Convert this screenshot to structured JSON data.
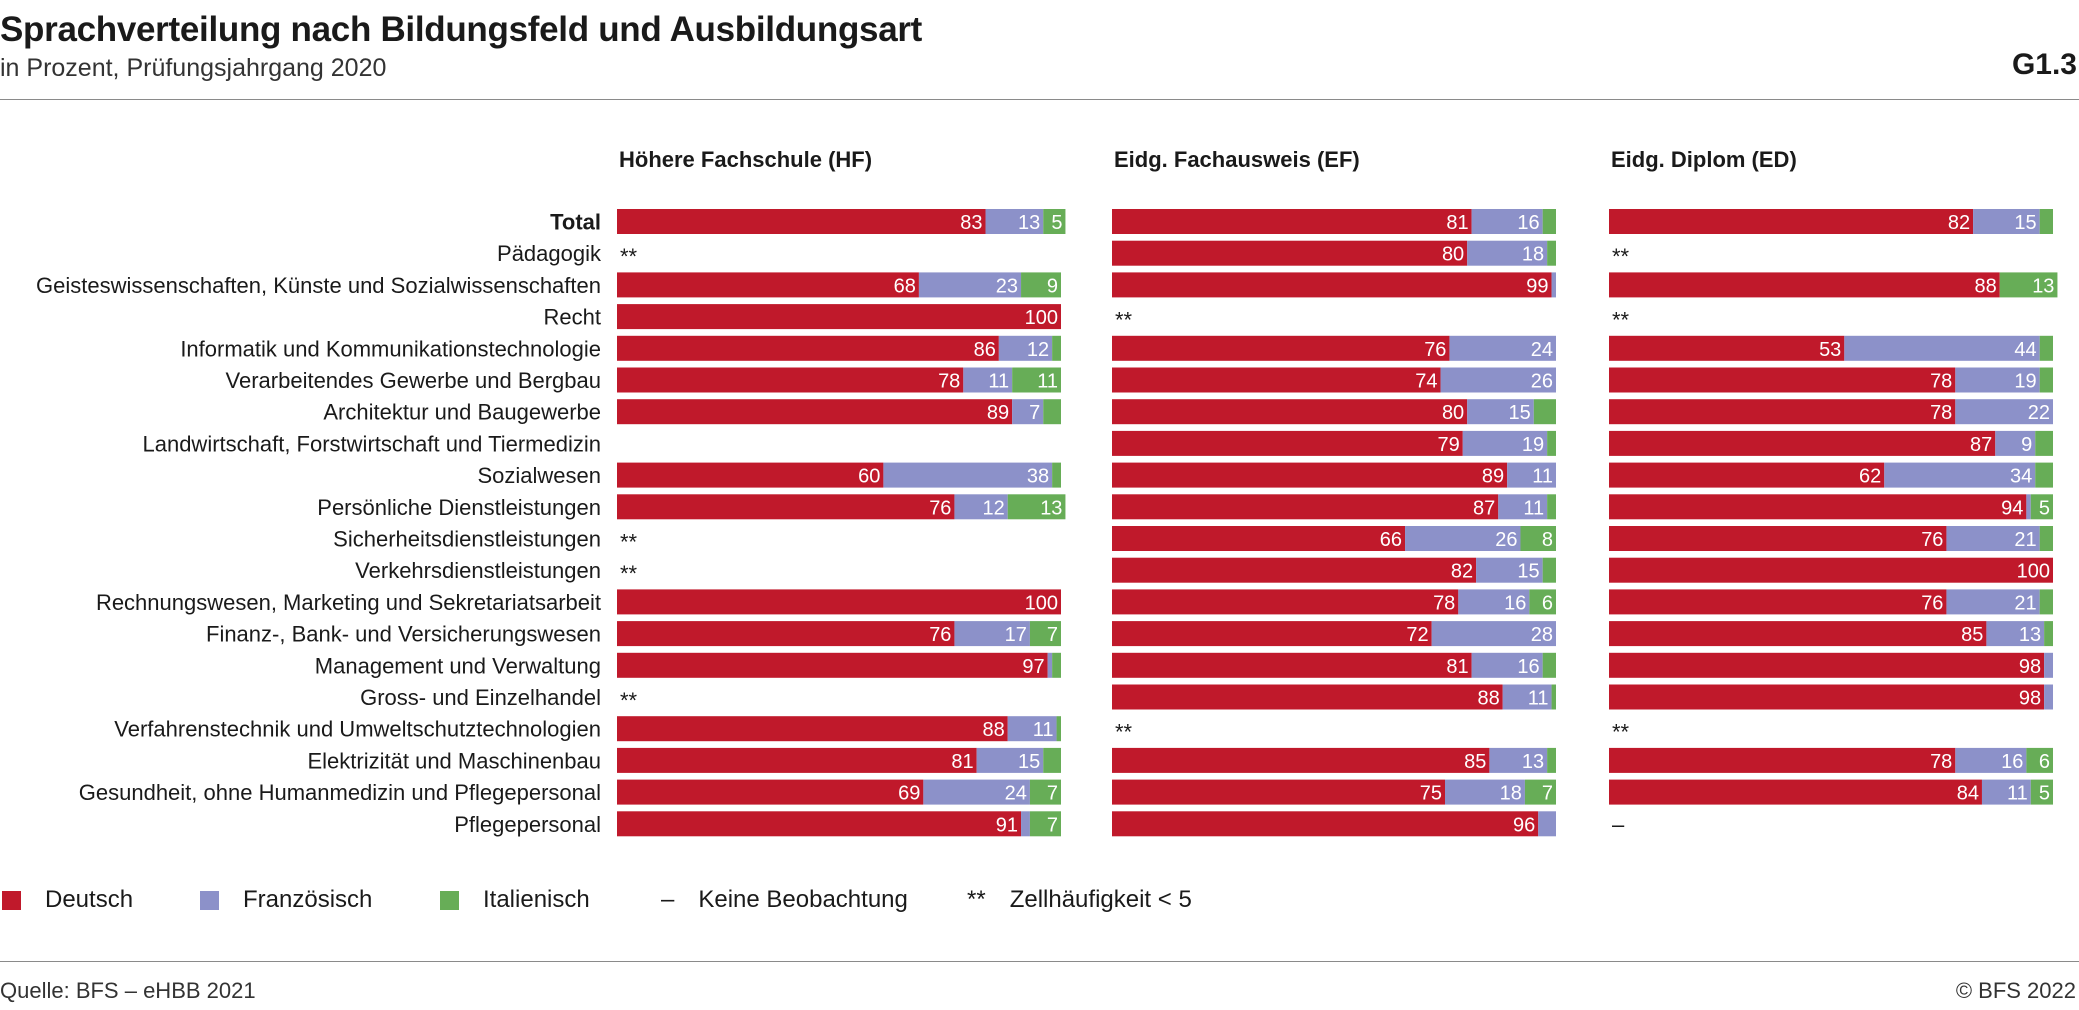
{
  "header": {
    "title": "Sprachverteilung nach Bildungsfeld und Ausbildungsart",
    "subtitle": "in Prozent, Prüfungsjahrgang 2020",
    "figure_number": "G1.3"
  },
  "legend": {
    "deutsch": "Deutsch",
    "franzoesisch": "Französisch",
    "italienisch": "Italienisch",
    "keine_symbol": "–",
    "keine_label": "Keine Beobachtung",
    "zell_symbol": "**",
    "zell_label": "Zellhäufigkeit < 5"
  },
  "footer": {
    "source": "Quelle: BFS – eHBB 2021",
    "copyright": "© BFS 2022"
  },
  "colors": {
    "Deutsch": "#c0192b",
    "Französisch": "#8c91c9",
    "Italienisch": "#67ad57",
    "text": "#1a1a1a"
  },
  "chart_data": {
    "type": "bar",
    "stacked": true,
    "orientation": "horizontal",
    "categories": [
      "Total",
      "Pädagogik",
      "Geisteswissenschaften, Künste und Sozialwissenschaften",
      "Recht",
      "Informatik und Kommunikationstechnologie",
      "Verarbeitendes Gewerbe und Bergbau",
      "Architektur und Baugewerbe",
      "Landwirtschaft, Forstwirtschaft und Tiermedizin",
      "Sozialwesen",
      "Persönliche Dienstleistungen",
      "Sicherheitsdienstleistungen",
      "Verkehrsdienstleistungen",
      "Rechnungswesen, Marketing und Sekretariatsarbeit",
      "Finanz-, Bank- und Versicherungswesen",
      "Management und Verwaltung",
      "Gross- und Einzelhandel",
      "Verfahrenstechnik und Umweltschutztechnologien",
      "Elektrizität und Maschinenbau",
      "Gesundheit, ohne Humanmedizin und Pflegepersonal",
      "Pflegepersonal"
    ],
    "series_names": [
      "Deutsch",
      "Französisch",
      "Italienisch"
    ],
    "xlim": [
      0,
      100
    ],
    "panels": [
      {
        "title": "Höhere Fachschule (HF)",
        "rows": [
          {
            "values": [
              83,
              13,
              5
            ],
            "labels": [
              "83",
              "13",
              "5"
            ]
          },
          {
            "note": "**"
          },
          {
            "values": [
              68,
              23,
              9
            ],
            "labels": [
              "68",
              "23",
              "9"
            ]
          },
          {
            "values": [
              100,
              0,
              0
            ],
            "labels": [
              "100",
              "",
              ""
            ]
          },
          {
            "values": [
              86,
              12,
              2
            ],
            "labels": [
              "86",
              "12",
              ""
            ]
          },
          {
            "values": [
              78,
              11,
              11
            ],
            "labels": [
              "78",
              "11",
              "11"
            ]
          },
          {
            "values": [
              89,
              7,
              4
            ],
            "labels": [
              "89",
              "7",
              ""
            ]
          },
          {},
          {
            "values": [
              60,
              38,
              2
            ],
            "labels": [
              "60",
              "38",
              ""
            ]
          },
          {
            "values": [
              76,
              12,
              13
            ],
            "labels": [
              "76",
              "12",
              "13"
            ]
          },
          {
            "note": "**"
          },
          {
            "note": "**"
          },
          {
            "values": [
              100,
              0,
              0
            ],
            "labels": [
              "100",
              "",
              ""
            ]
          },
          {
            "values": [
              76,
              17,
              7
            ],
            "labels": [
              "76",
              "17",
              "7"
            ]
          },
          {
            "values": [
              97,
              1,
              2
            ],
            "labels": [
              "97",
              "",
              ""
            ]
          },
          {
            "note": "**"
          },
          {
            "values": [
              88,
              11,
              1
            ],
            "labels": [
              "88",
              "11",
              ""
            ]
          },
          {
            "values": [
              81,
              15,
              4
            ],
            "labels": [
              "81",
              "15",
              ""
            ]
          },
          {
            "values": [
              69,
              24,
              7
            ],
            "labels": [
              "69",
              "24",
              "7"
            ]
          },
          {
            "values": [
              91,
              2,
              7
            ],
            "labels": [
              "91",
              "",
              "7"
            ]
          }
        ]
      },
      {
        "title": "Eidg. Fachausweis (EF)",
        "rows": [
          {
            "values": [
              81,
              16,
              3
            ],
            "labels": [
              "81",
              "16",
              ""
            ]
          },
          {
            "values": [
              80,
              18,
              2
            ],
            "labels": [
              "80",
              "18",
              ""
            ]
          },
          {
            "values": [
              99,
              1,
              0
            ],
            "labels": [
              "99",
              "",
              ""
            ]
          },
          {
            "note": "**"
          },
          {
            "values": [
              76,
              24,
              0
            ],
            "labels": [
              "76",
              "24",
              ""
            ]
          },
          {
            "values": [
              74,
              26,
              0
            ],
            "labels": [
              "74",
              "26",
              ""
            ]
          },
          {
            "values": [
              80,
              15,
              5
            ],
            "labels": [
              "80",
              "15",
              ""
            ]
          },
          {
            "values": [
              79,
              19,
              2
            ],
            "labels": [
              "79",
              "19",
              ""
            ]
          },
          {
            "values": [
              89,
              11,
              0
            ],
            "labels": [
              "89",
              "11",
              ""
            ]
          },
          {
            "values": [
              87,
              11,
              2
            ],
            "labels": [
              "87",
              "11",
              ""
            ]
          },
          {
            "values": [
              66,
              26,
              8
            ],
            "labels": [
              "66",
              "26",
              "8"
            ]
          },
          {
            "values": [
              82,
              15,
              3
            ],
            "labels": [
              "82",
              "15",
              ""
            ]
          },
          {
            "values": [
              78,
              16,
              6
            ],
            "labels": [
              "78",
              "16",
              "6"
            ]
          },
          {
            "values": [
              72,
              28,
              0
            ],
            "labels": [
              "72",
              "28",
              ""
            ]
          },
          {
            "values": [
              81,
              16,
              3
            ],
            "labels": [
              "81",
              "16",
              ""
            ]
          },
          {
            "values": [
              88,
              11,
              1
            ],
            "labels": [
              "88",
              "11",
              ""
            ]
          },
          {
            "note": "**"
          },
          {
            "values": [
              85,
              13,
              2
            ],
            "labels": [
              "85",
              "13",
              ""
            ]
          },
          {
            "values": [
              75,
              18,
              7
            ],
            "labels": [
              "75",
              "18",
              "7"
            ]
          },
          {
            "values": [
              96,
              4,
              0
            ],
            "labels": [
              "96",
              "",
              ""
            ]
          }
        ]
      },
      {
        "title": "Eidg. Diplom (ED)",
        "rows": [
          {
            "values": [
              82,
              15,
              3
            ],
            "labels": [
              "82",
              "15",
              ""
            ]
          },
          {
            "note": "**"
          },
          {
            "values": [
              88,
              0,
              13
            ],
            "labels": [
              "88",
              "",
              "13"
            ]
          },
          {
            "note": "**"
          },
          {
            "values": [
              53,
              44,
              3
            ],
            "labels": [
              "53",
              "44",
              ""
            ]
          },
          {
            "values": [
              78,
              19,
              3
            ],
            "labels": [
              "78",
              "19",
              ""
            ]
          },
          {
            "values": [
              78,
              22,
              0
            ],
            "labels": [
              "78",
              "22",
              ""
            ]
          },
          {
            "values": [
              87,
              9,
              4
            ],
            "labels": [
              "87",
              "9",
              ""
            ]
          },
          {
            "values": [
              62,
              34,
              4
            ],
            "labels": [
              "62",
              "34",
              ""
            ]
          },
          {
            "values": [
              94,
              1,
              5
            ],
            "labels": [
              "94",
              "",
              "5"
            ]
          },
          {
            "values": [
              76,
              21,
              3
            ],
            "labels": [
              "76",
              "21",
              ""
            ]
          },
          {
            "values": [
              100,
              0,
              0
            ],
            "labels": [
              "100",
              "",
              ""
            ]
          },
          {
            "values": [
              76,
              21,
              3
            ],
            "labels": [
              "76",
              "21",
              ""
            ]
          },
          {
            "values": [
              85,
              13,
              2
            ],
            "labels": [
              "85",
              "13",
              ""
            ]
          },
          {
            "values": [
              98,
              2,
              0
            ],
            "labels": [
              "98",
              "",
              ""
            ]
          },
          {
            "values": [
              98,
              2,
              0
            ],
            "labels": [
              "98",
              "",
              ""
            ]
          },
          {
            "note": "**"
          },
          {
            "values": [
              78,
              16,
              6
            ],
            "labels": [
              "78",
              "16",
              "6"
            ]
          },
          {
            "values": [
              84,
              11,
              5
            ],
            "labels": [
              "84",
              "11",
              "5"
            ]
          },
          {
            "note": "–"
          }
        ]
      }
    ]
  }
}
